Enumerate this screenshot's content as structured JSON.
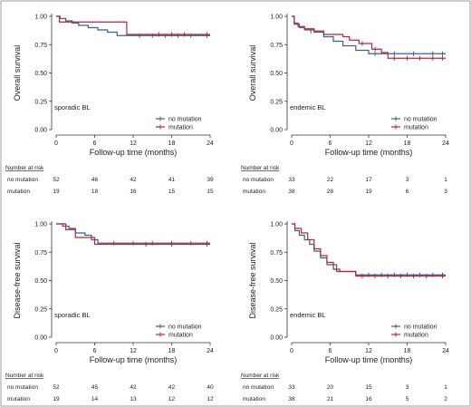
{
  "chart_data": [
    {
      "type": "line",
      "subtitle": "sporadic BL",
      "ylabel": "Overall survival",
      "xlabel": "Follow-up time (months)",
      "xlim": [
        0,
        24
      ],
      "ylim": [
        0,
        1
      ],
      "x_ticks": [
        0,
        6,
        12,
        18,
        24
      ],
      "y_ticks": [
        0,
        0.25,
        0.5,
        0.75,
        1
      ],
      "y_tick_labels": [
        "0.00",
        "0.25",
        "0.50",
        "0.75",
        "1.00"
      ],
      "legend": "bottom-right",
      "series": [
        {
          "name": "no mutation",
          "color": "#3e5f8a",
          "steps": [
            [
              0,
              1.0
            ],
            [
              0.6,
              0.98
            ],
            [
              1.5,
              0.96
            ],
            [
              2.5,
              0.94
            ],
            [
              3.5,
              0.92
            ],
            [
              5.0,
              0.9
            ],
            [
              6.5,
              0.88
            ],
            [
              8.0,
              0.86
            ],
            [
              9.5,
              0.83
            ],
            [
              24,
              0.83
            ]
          ],
          "censors": [
            [
              13,
              0.83
            ],
            [
              15,
              0.83
            ],
            [
              17,
              0.83
            ],
            [
              19,
              0.83
            ],
            [
              21,
              0.83
            ],
            [
              23.5,
              0.83
            ]
          ]
        },
        {
          "name": "mutation",
          "color": "#b5263b",
          "steps": [
            [
              0,
              1.0
            ],
            [
              0.5,
              0.95
            ],
            [
              11.0,
              0.95
            ],
            [
              11.0,
              0.84
            ],
            [
              24,
              0.84
            ]
          ],
          "censors": [
            [
              16,
              0.84
            ],
            [
              18,
              0.84
            ],
            [
              20,
              0.84
            ],
            [
              23.5,
              0.84
            ]
          ]
        }
      ],
      "risk_table": {
        "title": "Number at risk",
        "rows": [
          {
            "label": "no mutation",
            "values": [
              "52",
              "46",
              "42",
              "41",
              "39"
            ]
          },
          {
            "label": "mutation",
            "values": [
              "19",
              "18",
              "16",
              "15",
              "15"
            ]
          }
        ]
      }
    },
    {
      "type": "line",
      "subtitle": "endemic BL",
      "ylabel": "Overall survival",
      "xlabel": "Follow-up time (months)",
      "xlim": [
        0,
        24
      ],
      "ylim": [
        0,
        1
      ],
      "x_ticks": [
        0,
        6,
        12,
        18,
        24
      ],
      "y_ticks": [
        0,
        0.25,
        0.5,
        0.75,
        1
      ],
      "y_tick_labels": [
        "0.00",
        "0.25",
        "0.50",
        "0.75",
        "1.00"
      ],
      "legend": "bottom-right",
      "series": [
        {
          "name": "no mutation",
          "color": "#3e5f8a",
          "steps": [
            [
              0,
              1.0
            ],
            [
              0.4,
              0.93
            ],
            [
              1.2,
              0.9
            ],
            [
              2.0,
              0.88
            ],
            [
              3.5,
              0.86
            ],
            [
              5.0,
              0.82
            ],
            [
              6.5,
              0.78
            ],
            [
              8.0,
              0.74
            ],
            [
              10.0,
              0.7
            ],
            [
              12.0,
              0.67
            ],
            [
              24,
              0.67
            ]
          ],
          "censors": [
            [
              13,
              0.67
            ],
            [
              16,
              0.67
            ],
            [
              19,
              0.67
            ],
            [
              22,
              0.67
            ],
            [
              23.5,
              0.67
            ]
          ]
        },
        {
          "name": "mutation",
          "color": "#b5263b",
          "steps": [
            [
              0,
              1.0
            ],
            [
              0.4,
              0.94
            ],
            [
              1.0,
              0.91
            ],
            [
              2.0,
              0.89
            ],
            [
              3.5,
              0.87
            ],
            [
              5.0,
              0.84
            ],
            [
              8.0,
              0.82
            ],
            [
              9.0,
              0.79
            ],
            [
              10.5,
              0.76
            ],
            [
              12.5,
              0.71
            ],
            [
              14.0,
              0.68
            ],
            [
              15.0,
              0.63
            ],
            [
              24,
              0.63
            ]
          ],
          "censors": [
            [
              3,
              0.87
            ],
            [
              11,
              0.76
            ],
            [
              13,
              0.71
            ],
            [
              16,
              0.63
            ],
            [
              18,
              0.63
            ],
            [
              20,
              0.63
            ],
            [
              22,
              0.63
            ],
            [
              23.5,
              0.63
            ]
          ]
        }
      ],
      "risk_table": {
        "title": "Number at risk",
        "rows": [
          {
            "label": "no mutation",
            "values": [
              "33",
              "22",
              "17",
              "3",
              "1"
            ]
          },
          {
            "label": "mutation",
            "values": [
              "38",
              "28",
              "19",
              "6",
              "3"
            ]
          }
        ]
      }
    },
    {
      "type": "line",
      "subtitle": "sporadic BL",
      "ylabel": "Disease-free survival",
      "xlabel": "Follow-up time (months)",
      "xlim": [
        0,
        24
      ],
      "ylim": [
        0,
        1
      ],
      "x_ticks": [
        0,
        6,
        12,
        18,
        24
      ],
      "y_ticks": [
        0,
        0.25,
        0.5,
        0.75,
        1
      ],
      "y_tick_labels": [
        "0.00",
        "0.25",
        "0.50",
        "0.75",
        "1.00"
      ],
      "legend": "bottom-right",
      "series": [
        {
          "name": "no mutation",
          "color": "#3e5f8a",
          "steps": [
            [
              0,
              1.0
            ],
            [
              1.0,
              0.98
            ],
            [
              2.0,
              0.96
            ],
            [
              3.0,
              0.92
            ],
            [
              4.5,
              0.9
            ],
            [
              5.5,
              0.86
            ],
            [
              6.5,
              0.83
            ],
            [
              24,
              0.83
            ]
          ],
          "censors": [
            [
              9,
              0.83
            ],
            [
              12,
              0.83
            ],
            [
              15,
              0.83
            ],
            [
              18,
              0.83
            ],
            [
              21,
              0.83
            ],
            [
              23.5,
              0.83
            ]
          ]
        },
        {
          "name": "mutation",
          "color": "#b5263b",
          "steps": [
            [
              0,
              1.0
            ],
            [
              1.5,
              0.95
            ],
            [
              3.0,
              0.88
            ],
            [
              6.0,
              0.88
            ],
            [
              6.0,
              0.82
            ],
            [
              24,
              0.82
            ]
          ],
          "censors": [
            [
              14,
              0.82
            ],
            [
              18,
              0.82
            ],
            [
              23.5,
              0.82
            ]
          ]
        }
      ],
      "risk_table": {
        "title": "Number at risk",
        "rows": [
          {
            "label": "no mutation",
            "values": [
              "52",
              "45",
              "42",
              "42",
              "40"
            ]
          },
          {
            "label": "mutation",
            "values": [
              "19",
              "14",
              "13",
              "12",
              "12"
            ]
          }
        ]
      }
    },
    {
      "type": "line",
      "subtitle": "endemic BL",
      "ylabel": "Disease-free survival",
      "xlabel": "Follow-up time (months)",
      "xlim": [
        0,
        24
      ],
      "ylim": [
        0,
        1
      ],
      "x_ticks": [
        0,
        6,
        12,
        18,
        24
      ],
      "y_ticks": [
        0,
        0.25,
        0.5,
        0.75,
        1
      ],
      "y_tick_labels": [
        "0.00",
        "0.25",
        "0.50",
        "0.75",
        "1.00"
      ],
      "legend": "bottom-right",
      "series": [
        {
          "name": "no mutation",
          "color": "#3e5f8a",
          "steps": [
            [
              0,
              1.0
            ],
            [
              0.5,
              0.94
            ],
            [
              1.2,
              0.9
            ],
            [
              2.0,
              0.86
            ],
            [
              2.8,
              0.82
            ],
            [
              3.5,
              0.76
            ],
            [
              4.5,
              0.7
            ],
            [
              5.5,
              0.64
            ],
            [
              7.0,
              0.58
            ],
            [
              10.0,
              0.55
            ],
            [
              24,
              0.55
            ]
          ],
          "censors": [
            [
              12,
              0.55
            ],
            [
              14,
              0.55
            ],
            [
              16,
              0.55
            ],
            [
              18,
              0.55
            ],
            [
              20,
              0.55
            ],
            [
              22,
              0.55
            ],
            [
              23.5,
              0.55
            ]
          ]
        },
        {
          "name": "mutation",
          "color": "#b5263b",
          "steps": [
            [
              0,
              1.0
            ],
            [
              0.5,
              0.96
            ],
            [
              1.5,
              0.92
            ],
            [
              2.5,
              0.86
            ],
            [
              3.5,
              0.78
            ],
            [
              4.5,
              0.72
            ],
            [
              5.5,
              0.66
            ],
            [
              6.5,
              0.6
            ],
            [
              7.5,
              0.58
            ],
            [
              10.0,
              0.54
            ],
            [
              24,
              0.54
            ]
          ],
          "censors": [
            [
              11,
              0.54
            ],
            [
              13,
              0.54
            ],
            [
              15,
              0.54
            ],
            [
              17,
              0.54
            ],
            [
              19,
              0.54
            ],
            [
              21,
              0.54
            ],
            [
              23.5,
              0.54
            ]
          ]
        }
      ],
      "risk_table": {
        "title": "Number at risk",
        "rows": [
          {
            "label": "no mutation",
            "values": [
              "33",
              "20",
              "15",
              "3",
              "1"
            ]
          },
          {
            "label": "mutation",
            "values": [
              "38",
              "21",
              "16",
              "5",
              "2"
            ]
          }
        ]
      }
    }
  ]
}
